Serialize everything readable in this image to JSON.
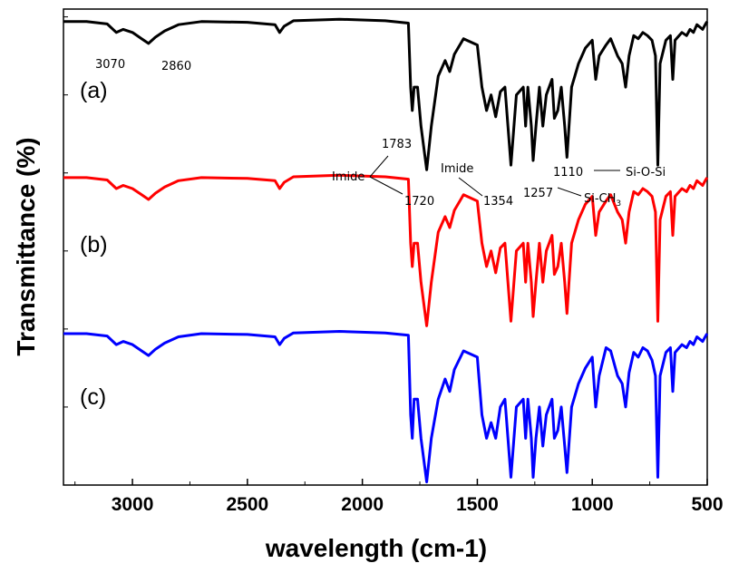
{
  "chart_data": {
    "type": "line",
    "title": "",
    "xlabel": "wavelength (cm-1)",
    "ylabel": "Transmittance (%)",
    "xlim": [
      3300,
      500
    ],
    "x_reversed": true,
    "x_ticks": [
      3000,
      2500,
      2000,
      1500,
      1000,
      500
    ],
    "y_ticks_labeled": false,
    "grid": false,
    "legend": "none",
    "series": [
      {
        "label": "(a)",
        "color": "#000000",
        "offset": 2.0,
        "points": [
          [
            3300,
            0.97
          ],
          [
            3200,
            0.97
          ],
          [
            3110,
            0.955
          ],
          [
            3070,
            0.9
          ],
          [
            3040,
            0.92
          ],
          [
            3000,
            0.9
          ],
          [
            2960,
            0.86
          ],
          [
            2930,
            0.83
          ],
          [
            2900,
            0.87
          ],
          [
            2860,
            0.91
          ],
          [
            2800,
            0.95
          ],
          [
            2700,
            0.97
          ],
          [
            2500,
            0.965
          ],
          [
            2380,
            0.95
          ],
          [
            2360,
            0.9
          ],
          [
            2340,
            0.94
          ],
          [
            2300,
            0.975
          ],
          [
            2100,
            0.985
          ],
          [
            1900,
            0.975
          ],
          [
            1800,
            0.96
          ],
          [
            1790,
            0.55
          ],
          [
            1783,
            0.4
          ],
          [
            1775,
            0.55
          ],
          [
            1760,
            0.55
          ],
          [
            1745,
            0.3
          ],
          [
            1720,
            0.02
          ],
          [
            1700,
            0.3
          ],
          [
            1670,
            0.62
          ],
          [
            1640,
            0.72
          ],
          [
            1620,
            0.65
          ],
          [
            1600,
            0.76
          ],
          [
            1560,
            0.86
          ],
          [
            1500,
            0.82
          ],
          [
            1480,
            0.55
          ],
          [
            1460,
            0.4
          ],
          [
            1440,
            0.5
          ],
          [
            1420,
            0.36
          ],
          [
            1400,
            0.52
          ],
          [
            1380,
            0.55
          ],
          [
            1354,
            0.05
          ],
          [
            1330,
            0.5
          ],
          [
            1300,
            0.55
          ],
          [
            1290,
            0.3
          ],
          [
            1280,
            0.55
          ],
          [
            1265,
            0.3
          ],
          [
            1257,
            0.08
          ],
          [
            1245,
            0.3
          ],
          [
            1230,
            0.55
          ],
          [
            1215,
            0.3
          ],
          [
            1200,
            0.5
          ],
          [
            1175,
            0.6
          ],
          [
            1165,
            0.35
          ],
          [
            1150,
            0.4
          ],
          [
            1135,
            0.55
          ],
          [
            1120,
            0.3
          ],
          [
            1110,
            0.1
          ],
          [
            1090,
            0.55
          ],
          [
            1060,
            0.7
          ],
          [
            1030,
            0.8
          ],
          [
            1000,
            0.85
          ],
          [
            985,
            0.6
          ],
          [
            970,
            0.75
          ],
          [
            940,
            0.82
          ],
          [
            920,
            0.86
          ],
          [
            890,
            0.75
          ],
          [
            870,
            0.7
          ],
          [
            855,
            0.55
          ],
          [
            840,
            0.75
          ],
          [
            820,
            0.88
          ],
          [
            800,
            0.86
          ],
          [
            780,
            0.9
          ],
          [
            760,
            0.88
          ],
          [
            740,
            0.85
          ],
          [
            725,
            0.75
          ],
          [
            715,
            0.05
          ],
          [
            705,
            0.7
          ],
          [
            680,
            0.85
          ],
          [
            660,
            0.88
          ],
          [
            650,
            0.6
          ],
          [
            640,
            0.85
          ],
          [
            610,
            0.9
          ],
          [
            590,
            0.88
          ],
          [
            575,
            0.92
          ],
          [
            560,
            0.9
          ],
          [
            545,
            0.95
          ],
          [
            520,
            0.92
          ],
          [
            505,
            0.96
          ],
          [
            500,
            0.97
          ]
        ]
      },
      {
        "label": "(b)",
        "color": "#ff0000",
        "offset": 1.0,
        "points": [
          [
            3300,
            0.97
          ],
          [
            3200,
            0.97
          ],
          [
            3110,
            0.955
          ],
          [
            3070,
            0.9
          ],
          [
            3040,
            0.92
          ],
          [
            3000,
            0.9
          ],
          [
            2960,
            0.86
          ],
          [
            2930,
            0.83
          ],
          [
            2900,
            0.87
          ],
          [
            2860,
            0.91
          ],
          [
            2800,
            0.95
          ],
          [
            2700,
            0.97
          ],
          [
            2500,
            0.965
          ],
          [
            2380,
            0.95
          ],
          [
            2360,
            0.9
          ],
          [
            2340,
            0.94
          ],
          [
            2300,
            0.975
          ],
          [
            2100,
            0.985
          ],
          [
            1900,
            0.975
          ],
          [
            1800,
            0.96
          ],
          [
            1790,
            0.55
          ],
          [
            1783,
            0.4
          ],
          [
            1775,
            0.55
          ],
          [
            1760,
            0.55
          ],
          [
            1745,
            0.3
          ],
          [
            1720,
            0.02
          ],
          [
            1700,
            0.3
          ],
          [
            1670,
            0.62
          ],
          [
            1640,
            0.72
          ],
          [
            1620,
            0.65
          ],
          [
            1600,
            0.76
          ],
          [
            1560,
            0.86
          ],
          [
            1500,
            0.82
          ],
          [
            1480,
            0.55
          ],
          [
            1460,
            0.4
          ],
          [
            1440,
            0.5
          ],
          [
            1420,
            0.36
          ],
          [
            1400,
            0.52
          ],
          [
            1380,
            0.55
          ],
          [
            1354,
            0.05
          ],
          [
            1330,
            0.5
          ],
          [
            1300,
            0.55
          ],
          [
            1290,
            0.3
          ],
          [
            1280,
            0.55
          ],
          [
            1265,
            0.3
          ],
          [
            1257,
            0.08
          ],
          [
            1245,
            0.3
          ],
          [
            1230,
            0.55
          ],
          [
            1215,
            0.3
          ],
          [
            1200,
            0.5
          ],
          [
            1175,
            0.6
          ],
          [
            1165,
            0.35
          ],
          [
            1150,
            0.4
          ],
          [
            1135,
            0.55
          ],
          [
            1120,
            0.3
          ],
          [
            1110,
            0.1
          ],
          [
            1090,
            0.55
          ],
          [
            1060,
            0.7
          ],
          [
            1030,
            0.8
          ],
          [
            1000,
            0.85
          ],
          [
            985,
            0.6
          ],
          [
            970,
            0.75
          ],
          [
            940,
            0.82
          ],
          [
            920,
            0.86
          ],
          [
            890,
            0.75
          ],
          [
            870,
            0.7
          ],
          [
            855,
            0.55
          ],
          [
            840,
            0.75
          ],
          [
            820,
            0.88
          ],
          [
            800,
            0.86
          ],
          [
            780,
            0.9
          ],
          [
            760,
            0.88
          ],
          [
            740,
            0.85
          ],
          [
            725,
            0.75
          ],
          [
            715,
            0.05
          ],
          [
            705,
            0.7
          ],
          [
            680,
            0.85
          ],
          [
            660,
            0.88
          ],
          [
            650,
            0.6
          ],
          [
            640,
            0.85
          ],
          [
            610,
            0.9
          ],
          [
            590,
            0.88
          ],
          [
            575,
            0.92
          ],
          [
            560,
            0.9
          ],
          [
            545,
            0.95
          ],
          [
            520,
            0.92
          ],
          [
            505,
            0.96
          ],
          [
            500,
            0.97
          ]
        ]
      },
      {
        "label": "(c)",
        "color": "#0000ff",
        "offset": 0.0,
        "points": [
          [
            3300,
            0.97
          ],
          [
            3200,
            0.97
          ],
          [
            3110,
            0.955
          ],
          [
            3070,
            0.9
          ],
          [
            3040,
            0.92
          ],
          [
            3000,
            0.9
          ],
          [
            2960,
            0.86
          ],
          [
            2930,
            0.83
          ],
          [
            2900,
            0.87
          ],
          [
            2860,
            0.91
          ],
          [
            2800,
            0.95
          ],
          [
            2700,
            0.97
          ],
          [
            2500,
            0.965
          ],
          [
            2380,
            0.95
          ],
          [
            2360,
            0.9
          ],
          [
            2340,
            0.94
          ],
          [
            2300,
            0.975
          ],
          [
            2100,
            0.985
          ],
          [
            1900,
            0.975
          ],
          [
            1800,
            0.96
          ],
          [
            1790,
            0.45
          ],
          [
            1783,
            0.3
          ],
          [
            1775,
            0.55
          ],
          [
            1760,
            0.55
          ],
          [
            1745,
            0.3
          ],
          [
            1720,
            0.02
          ],
          [
            1700,
            0.3
          ],
          [
            1670,
            0.55
          ],
          [
            1640,
            0.68
          ],
          [
            1620,
            0.6
          ],
          [
            1600,
            0.74
          ],
          [
            1560,
            0.86
          ],
          [
            1500,
            0.82
          ],
          [
            1480,
            0.45
          ],
          [
            1460,
            0.3
          ],
          [
            1440,
            0.4
          ],
          [
            1420,
            0.3
          ],
          [
            1400,
            0.5
          ],
          [
            1380,
            0.55
          ],
          [
            1354,
            0.05
          ],
          [
            1330,
            0.5
          ],
          [
            1300,
            0.55
          ],
          [
            1290,
            0.3
          ],
          [
            1280,
            0.55
          ],
          [
            1265,
            0.3
          ],
          [
            1257,
            0.05
          ],
          [
            1245,
            0.3
          ],
          [
            1230,
            0.5
          ],
          [
            1215,
            0.25
          ],
          [
            1200,
            0.45
          ],
          [
            1175,
            0.55
          ],
          [
            1165,
            0.3
          ],
          [
            1150,
            0.35
          ],
          [
            1135,
            0.5
          ],
          [
            1120,
            0.25
          ],
          [
            1110,
            0.08
          ],
          [
            1090,
            0.5
          ],
          [
            1060,
            0.65
          ],
          [
            1030,
            0.75
          ],
          [
            1000,
            0.82
          ],
          [
            985,
            0.5
          ],
          [
            970,
            0.7
          ],
          [
            940,
            0.88
          ],
          [
            920,
            0.86
          ],
          [
            890,
            0.7
          ],
          [
            870,
            0.65
          ],
          [
            855,
            0.5
          ],
          [
            840,
            0.72
          ],
          [
            820,
            0.85
          ],
          [
            800,
            0.82
          ],
          [
            780,
            0.88
          ],
          [
            760,
            0.86
          ],
          [
            740,
            0.8
          ],
          [
            725,
            0.7
          ],
          [
            715,
            0.05
          ],
          [
            705,
            0.7
          ],
          [
            680,
            0.85
          ],
          [
            660,
            0.88
          ],
          [
            650,
            0.6
          ],
          [
            640,
            0.85
          ],
          [
            610,
            0.9
          ],
          [
            590,
            0.88
          ],
          [
            575,
            0.92
          ],
          [
            560,
            0.9
          ],
          [
            545,
            0.95
          ],
          [
            520,
            0.92
          ],
          [
            505,
            0.96
          ],
          [
            500,
            0.97
          ]
        ]
      }
    ],
    "annotations": [
      {
        "text": "3070",
        "x": 3070,
        "series": "(a)"
      },
      {
        "text": "2860",
        "x": 2860,
        "series": "(a)"
      },
      {
        "text": "1783",
        "x": 1783,
        "series": "(a)"
      },
      {
        "text": "Imide",
        "x": 1783,
        "series": "(a)"
      },
      {
        "text": "1720",
        "x": 1720,
        "series": "(a)"
      },
      {
        "text": "Imide",
        "x": 1354,
        "series": "(a)"
      },
      {
        "text": "1354",
        "x": 1354,
        "series": "(a)"
      },
      {
        "text": "1257",
        "x": 1257,
        "series": "(a)"
      },
      {
        "text": "Si-CH",
        "sub": "3",
        "x": 1257,
        "series": "(a)"
      },
      {
        "text": "1110",
        "x": 1110,
        "series": "(a)"
      },
      {
        "text": "Si-O-Si",
        "x": 1110,
        "series": "(a)"
      }
    ]
  }
}
